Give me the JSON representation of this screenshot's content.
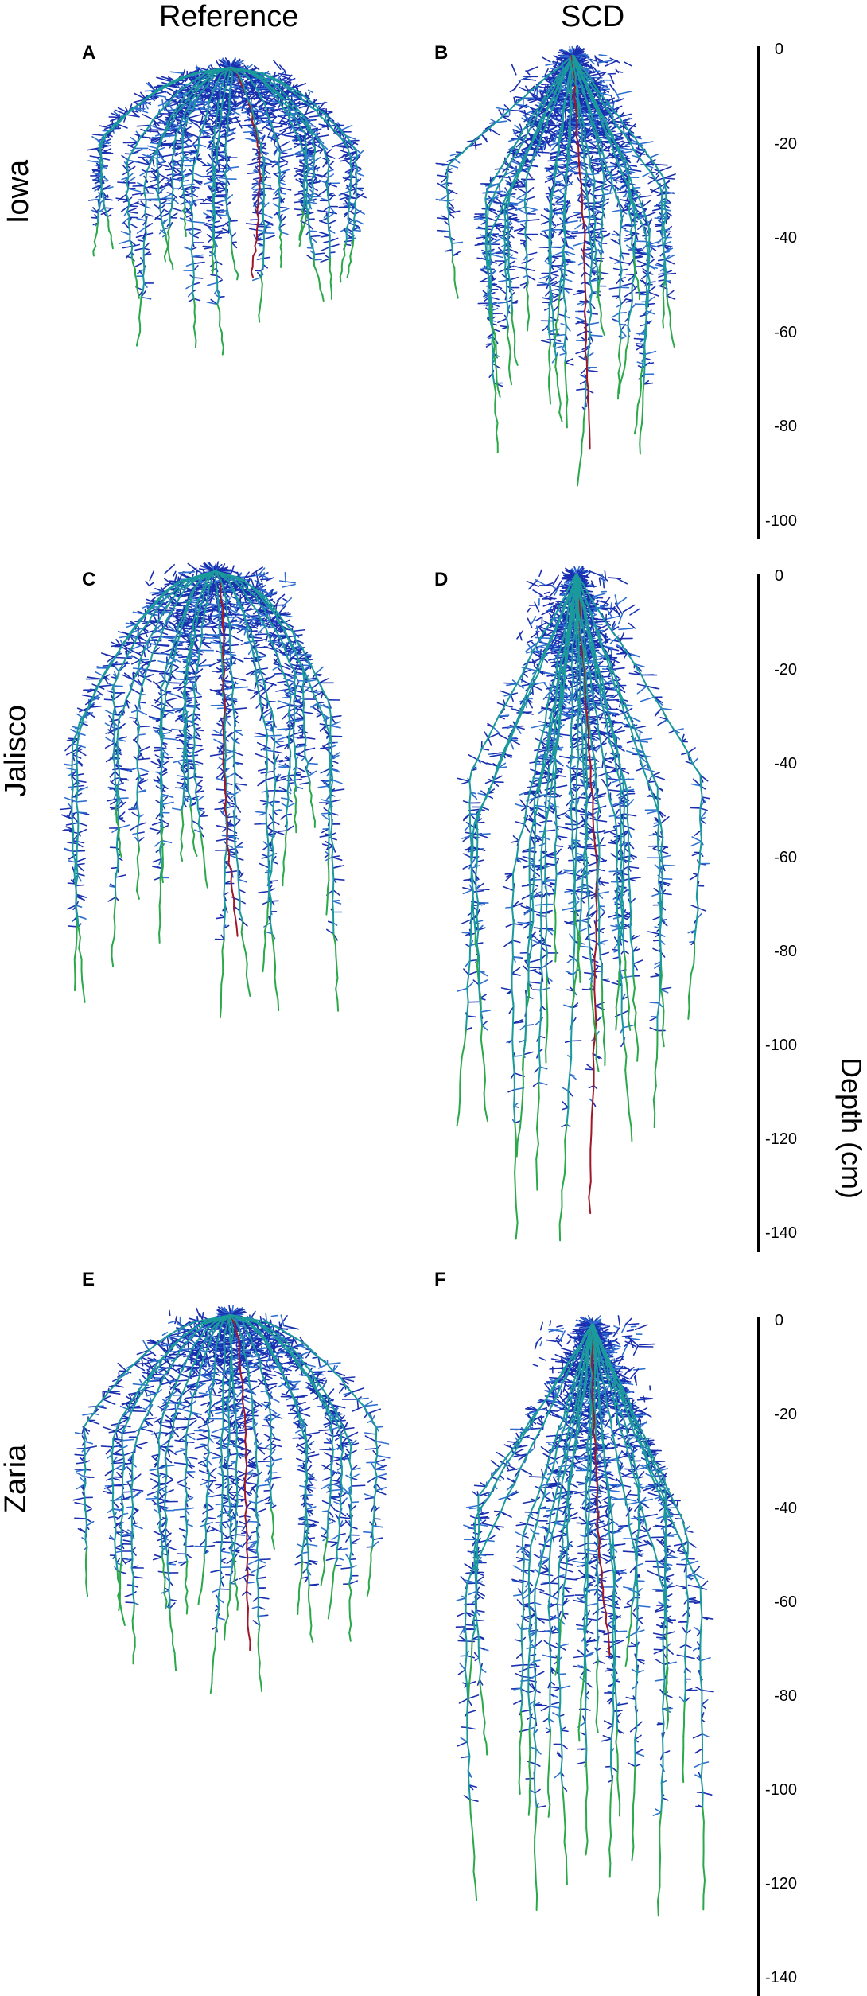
{
  "column_headers": [
    "Reference",
    "SCD"
  ],
  "row_labels": [
    "Iowa",
    "Jalisco",
    "Zaria"
  ],
  "panels": [
    {
      "letter": "A",
      "site": "Iowa",
      "model": "Reference",
      "max_depth_cm": 62
    },
    {
      "letter": "B",
      "site": "Iowa",
      "model": "SCD",
      "max_depth_cm": 93
    },
    {
      "letter": "C",
      "site": "Jalisco",
      "model": "Reference",
      "max_depth_cm": 98
    },
    {
      "letter": "D",
      "site": "Jalisco",
      "model": "SCD",
      "max_depth_cm": 143
    },
    {
      "letter": "E",
      "site": "Zaria",
      "model": "Reference",
      "max_depth_cm": 82
    },
    {
      "letter": "F",
      "site": "Zaria",
      "model": "SCD",
      "max_depth_cm": 127
    }
  ],
  "depth_axes": [
    {
      "row": "Iowa",
      "ticks": [
        "0",
        "-20",
        "-40",
        "-60",
        "-80",
        "-100"
      ]
    },
    {
      "row": "Jalisco",
      "ticks": [
        "0",
        "-20",
        "-40",
        "-60",
        "-80",
        "-100",
        "-120",
        "-140"
      ]
    },
    {
      "row": "Zaria",
      "ticks": [
        "0",
        "-20",
        "-40",
        "-60",
        "-80",
        "-100",
        "-120",
        "-140"
      ]
    }
  ],
  "depth_axis_title": "Depth (cm)",
  "colors": {
    "laterals": "#1a2fb0",
    "laterals_light": "#2f6fd0",
    "main_roots_teal": "#1a9a9a",
    "root_tips_green": "#2aa84a",
    "taproot_red": "#a01828"
  }
}
